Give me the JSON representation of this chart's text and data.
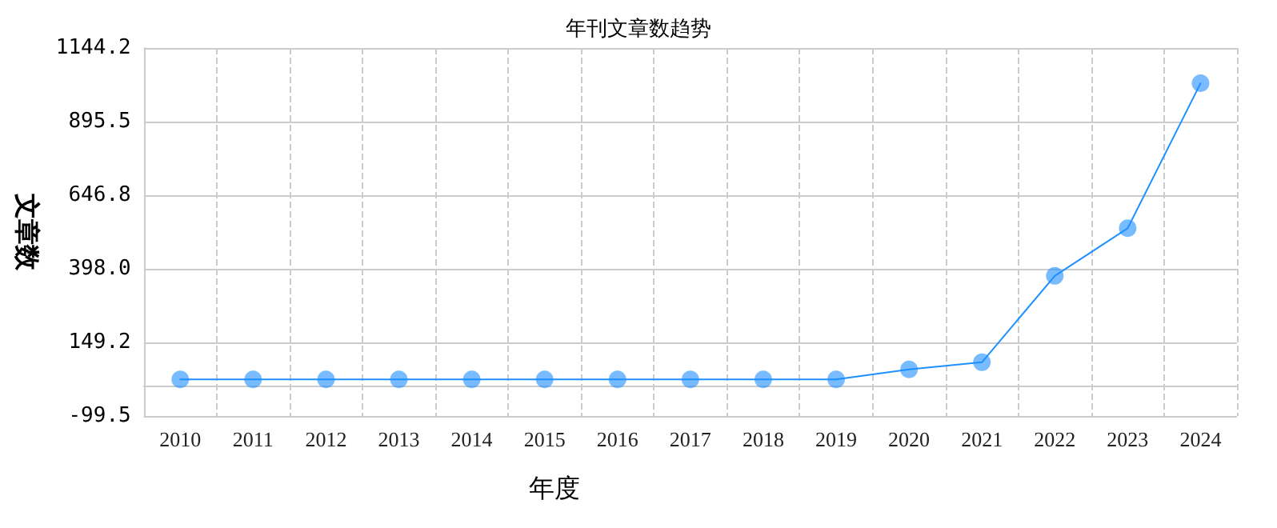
{
  "chart_data": {
    "type": "line",
    "title": "年刊文章数趋势",
    "xlabel": "年度",
    "ylabel": "文章数",
    "categories": [
      "2010",
      "2011",
      "2012",
      "2013",
      "2014",
      "2015",
      "2016",
      "2017",
      "2018",
      "2019",
      "2020",
      "2021",
      "2022",
      "2023",
      "2024"
    ],
    "series": [
      {
        "color": "#1e90ff",
        "values": [
          24,
          24,
          24,
          24,
          24,
          24,
          24,
          24,
          24,
          24,
          58,
          82,
          374,
          535,
          1025
        ]
      }
    ],
    "ylim": [
      -99.5,
      1144.2
    ],
    "yticks": [
      {
        "value": -99.5,
        "label": "-99.5"
      },
      {
        "value": 149.2,
        "label": "149.2"
      },
      {
        "value": 398.0,
        "label": "398.0"
      },
      {
        "value": 646.8,
        "label": "646.8"
      },
      {
        "value": 895.5,
        "label": "895.5"
      },
      {
        "value": 1144.2,
        "label": "1144.2"
      }
    ],
    "grid": true,
    "marker": "circle",
    "line_style": "solid"
  }
}
